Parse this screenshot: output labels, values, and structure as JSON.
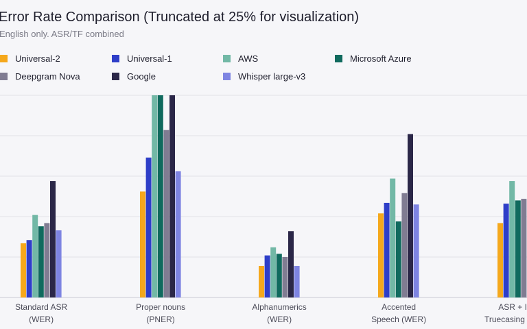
{
  "chart_data": {
    "type": "bar",
    "title": "Error Rate Comparison (Truncated at 25% for visualization)",
    "subtitle": "English only. ASR/TF combined",
    "ylim": [
      0,
      25
    ],
    "grid": true,
    "legend_position": "top",
    "categories": [
      [
        "Standard ASR",
        "(WER)"
      ],
      [
        "Proper nouns",
        "(PNER)"
      ],
      [
        "Alphanumerics",
        "(WER)"
      ],
      [
        "Accented",
        "Speech (WER)"
      ],
      [
        "ASR + ITN",
        "Truecasing (WER)"
      ]
    ],
    "series": [
      {
        "name": "Universal-2",
        "color": "#f5a81c",
        "values": [
          6.7,
          13.1,
          3.9,
          10.4,
          9.2
        ]
      },
      {
        "name": "Universal-1",
        "color": "#2e3ec8",
        "values": [
          7.1,
          17.3,
          5.2,
          11.7,
          11.6
        ]
      },
      {
        "name": "AWS",
        "color": "#72b8a6",
        "values": [
          10.2,
          25.0,
          6.2,
          14.7,
          14.4
        ]
      },
      {
        "name": "Microsoft Azure",
        "color": "#106a5e",
        "values": [
          8.8,
          25.0,
          5.4,
          9.4,
          12.0
        ]
      },
      {
        "name": "Deepgram Nova",
        "color": "#807c92",
        "values": [
          9.2,
          20.7,
          5.0,
          12.9,
          12.2
        ]
      },
      {
        "name": "Google",
        "color": "#2b2748",
        "values": [
          14.4,
          25.0,
          8.2,
          20.2,
          0
        ]
      },
      {
        "name": "Whisper large-v3",
        "color": "#7e84e2",
        "values": [
          8.3,
          15.6,
          3.9,
          11.5,
          0
        ]
      }
    ]
  }
}
